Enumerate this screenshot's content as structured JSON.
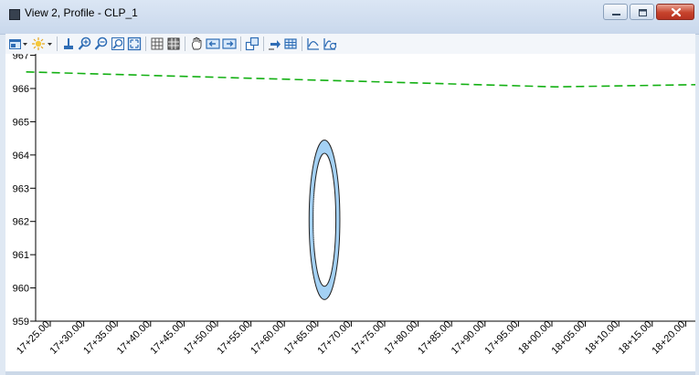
{
  "window": {
    "title": "View 2, Profile - CLP_1"
  },
  "toolbar": {
    "icons": [
      "view-display-icon",
      "dropdown-arrow-icon",
      "brightness-icon",
      "dropdown-arrow-icon",
      "update-icon",
      "zoom-in-icon",
      "zoom-out-icon",
      "window-area-icon",
      "fit-view-icon",
      "view-grid-icon",
      "view-table-icon",
      "pan-icon",
      "previous-view-icon",
      "next-view-icon",
      "copy-view-icon",
      "pointer-icon",
      "cell-grid-icon",
      "profile-icon",
      "profile-refresh-icon"
    ]
  },
  "chart_data": {
    "type": "line",
    "title": "",
    "xlabel": "",
    "ylabel": "",
    "y_ticks": [
      967,
      966,
      965,
      964,
      963,
      962,
      961,
      960,
      959
    ],
    "y_tick_labels": [
      "967",
      "966",
      "965",
      "964",
      "963",
      "962",
      "961",
      "960",
      "959"
    ],
    "ylim": [
      959,
      967.1
    ],
    "x_tick_labels": [
      "17+25.00",
      "17+30.00",
      "17+35.00",
      "17+40.00",
      "17+45.00",
      "17+50.00",
      "17+55.00",
      "17+60.00",
      "17+65.00",
      "17+70.00",
      "17+75.00",
      "17+80.00",
      "17+85.00",
      "17+90.00",
      "17+95.00",
      "18+00.00",
      "18+05.00",
      "18+10.00",
      "18+15.00",
      "18+20.00"
    ],
    "x_ticks": [
      1725,
      1730,
      1735,
      1740,
      1745,
      1750,
      1755,
      1760,
      1765,
      1770,
      1775,
      1780,
      1785,
      1790,
      1795,
      1800,
      1805,
      1810,
      1815,
      1820
    ],
    "xlim": [
      1721.4,
      1823.3
    ],
    "series": [
      {
        "style": "dashed",
        "color": "#13b013",
        "x": [
          1721.4,
          1800.5,
          1823.3
        ],
        "y": [
          966.5,
          966.05,
          966.12
        ]
      }
    ],
    "culvert": {
      "station": 1766.0,
      "outer_top": 964.45,
      "outer_bottom": 959.65,
      "inner_top": 964.05,
      "inner_bottom": 960.05,
      "outer_half_width": 2.3,
      "inner_half_width": 1.7,
      "fill_color": "#a4d1f4"
    }
  }
}
